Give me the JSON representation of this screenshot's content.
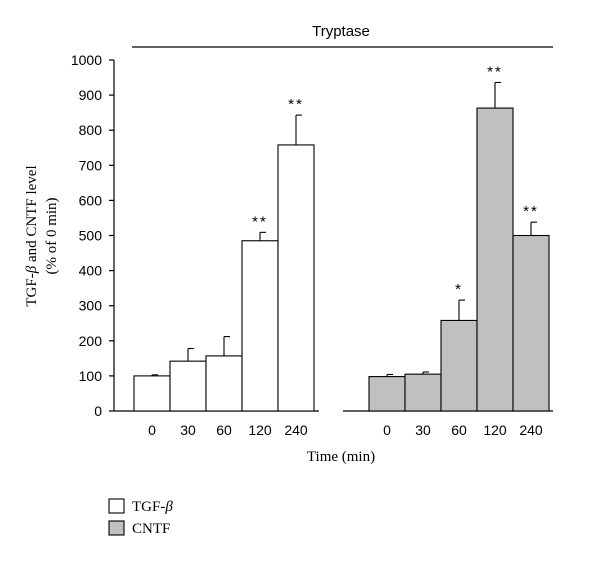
{
  "chart_data": {
    "type": "bar",
    "title": "Tryptase",
    "xlabel": "Time (min)",
    "ylabel": [
      "TGF-β and CNTF level",
      "(% of 0 min)"
    ],
    "ylim": [
      0,
      1000
    ],
    "yticks": [
      0,
      100,
      200,
      300,
      400,
      500,
      600,
      700,
      800,
      900,
      1000
    ],
    "grid": false,
    "legend_position": "bottom-left",
    "groups": [
      {
        "name": "TGF-β",
        "legend_label": "TGF-",
        "legend_symbol": "β",
        "fill": "#ffffff",
        "categories": [
          "0",
          "30",
          "60",
          "120",
          "240"
        ],
        "values": [
          100,
          142,
          157,
          485,
          758
        ],
        "errors": [
          3,
          36,
          55,
          24,
          85
        ],
        "significance": [
          "",
          "",
          "",
          "**",
          "**"
        ]
      },
      {
        "name": "CNTF",
        "legend_label": "CNTF",
        "legend_symbol": "",
        "fill": "#c0c0c0",
        "categories": [
          "0",
          "30",
          "60",
          "120",
          "240"
        ],
        "values": [
          98,
          105,
          258,
          863,
          500
        ],
        "errors": [
          6,
          6,
          58,
          73,
          38
        ],
        "significance": [
          "",
          "",
          "*",
          "**",
          "**"
        ]
      }
    ]
  }
}
